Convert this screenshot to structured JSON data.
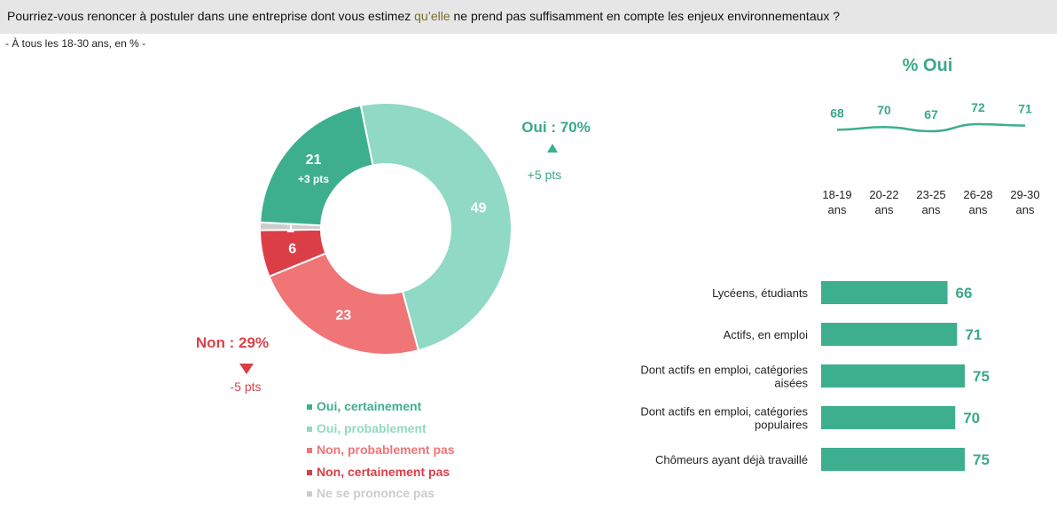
{
  "header": {
    "question_before": "Pourriez-vous renoncer à postuler dans une entreprise dont vous estimez ",
    "question_highlight": "qu’elle",
    "question_after": " ne prend pas suffisamment en compte les enjeux environnementaux ?",
    "subtitle": "- À tous les 18-30 ans, en % -"
  },
  "colors": {
    "oui_certainement": "#3daf8f",
    "oui_probablement": "#90d9c5",
    "non_probablement_pas": "#f07577",
    "non_certainement_pas": "#dc3e48",
    "ne_se_prononce_pas": "#cccccc",
    "teal_text": "#3aa88b",
    "red_text": "#d9434b"
  },
  "summary": {
    "oui_label": "Oui : 70%",
    "oui_change": "+5 pts",
    "non_label": "Non : 29%",
    "non_change": "-5 pts"
  },
  "chart_data": [
    {
      "type": "pie",
      "variant": "donut",
      "slices": [
        {
          "name": "Oui, probablement",
          "value": 49,
          "label": "49",
          "color": "#90d9c5"
        },
        {
          "name": "Non, probablement pas",
          "value": 23,
          "label": "23",
          "color": "#f07577"
        },
        {
          "name": "Non, certainement pas",
          "value": 6,
          "label": "6",
          "color": "#dc3e48"
        },
        {
          "name": "Ne se prononce pas",
          "value": 1,
          "label": "1",
          "color": "#cccccc"
        },
        {
          "name": "Oui, certainement",
          "value": 21,
          "label": "21",
          "sublabel": "+3 pts",
          "color": "#3daf8f"
        }
      ],
      "legend": [
        {
          "label": "Oui, certainement",
          "color": "#3daf8f"
        },
        {
          "label": "Oui, probablement",
          "color": "#90d9c5"
        },
        {
          "label": "Non, probablement pas",
          "color": "#f07577"
        },
        {
          "label": "Non, certainement pas",
          "color": "#dc3e48"
        },
        {
          "label": "Ne se prononce pas",
          "color": "#cccccc"
        }
      ],
      "legend_position": "bottom"
    },
    {
      "type": "line",
      "title": "% Oui",
      "categories": [
        "18-19 ans",
        "20-22 ans",
        "23-25 ans",
        "26-28 ans",
        "29-30 ans"
      ],
      "category_lines": [
        [
          "18-19",
          "ans"
        ],
        [
          "20-22",
          "ans"
        ],
        [
          "23-25",
          "ans"
        ],
        [
          "26-28",
          "ans"
        ],
        [
          "29-30",
          "ans"
        ]
      ],
      "values": [
        68,
        70,
        67,
        72,
        71
      ],
      "color": "#3daf8f"
    },
    {
      "type": "bar",
      "orientation": "horizontal",
      "categories": [
        "Lycéens, étudiants",
        "Actifs, en emploi",
        "Dont actifs en emploi, catégories aisées",
        "Dont actifs en emploi, catégories populaires",
        "Chômeurs ayant déjà travaillé"
      ],
      "category_lines": [
        [
          "Lycéens, étudiants"
        ],
        [
          "Actifs, en emploi"
        ],
        [
          "Dont actifs en emploi, catégories",
          "aisées"
        ],
        [
          "Dont actifs en emploi, catégories",
          "populaires"
        ],
        [
          "Chômeurs ayant déjà travaillé"
        ]
      ],
      "values": [
        66,
        71,
        75,
        70,
        75
      ],
      "color": "#3daf8f"
    }
  ]
}
